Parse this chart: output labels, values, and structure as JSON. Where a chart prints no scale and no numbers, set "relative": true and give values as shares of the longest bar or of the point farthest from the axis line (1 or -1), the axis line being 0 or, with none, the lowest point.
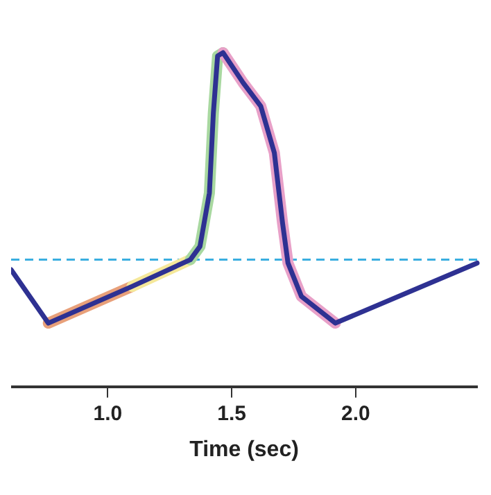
{
  "chart_data": {
    "type": "line",
    "relative": true,
    "xlabel": "Time (sec)",
    "xlim": [
      0.61,
      2.49
    ],
    "xticks": [
      {
        "value": 1,
        "label": "1.0"
      },
      {
        "value": 1.5,
        "label": "1.5"
      },
      {
        "value": 2,
        "label": "2.0"
      }
    ],
    "grid": false,
    "legend": false,
    "marker": "none",
    "line_style": "solid",
    "ref_lines": [
      {
        "axis": "y",
        "value": 0.38,
        "color": "#3aaee0",
        "line_style": "dashed"
      }
    ],
    "series": [
      {
        "color": "#e8a07a",
        "x": [
          0.76,
          1.098
        ],
        "values": [
          0.19,
          0.3
        ]
      },
      {
        "color": "#f5e89a",
        "x": [
          1.098,
          1.333
        ],
        "values": [
          0.3,
          0.38
        ]
      },
      {
        "color": "#a8d8a0",
        "x": [
          1.333,
          1.372,
          1.41,
          1.426,
          1.443,
          1.465
        ],
        "values": [
          0.38,
          0.42,
          0.58,
          0.82,
          0.99,
          1.0
        ]
      },
      {
        "color": "#e8a0c8",
        "x": [
          1.465,
          1.546,
          1.617,
          1.672,
          1.705,
          1.727,
          1.781,
          1.918
        ],
        "values": [
          1.0,
          0.91,
          0.84,
          0.7,
          0.49,
          0.37,
          0.27,
          0.19
        ]
      },
      {
        "color": "#2e3192",
        "x": [
          0.61,
          0.76,
          1.098,
          1.333,
          1.372,
          1.41,
          1.426,
          1.443,
          1.465,
          1.546,
          1.617,
          1.672,
          1.705,
          1.727,
          1.781,
          1.918,
          2.49
        ],
        "values": [
          0.35,
          0.19,
          0.3,
          0.38,
          0.42,
          0.58,
          0.82,
          0.99,
          1.0,
          0.91,
          0.84,
          0.7,
          0.49,
          0.37,
          0.27,
          0.19,
          0.37
        ]
      }
    ]
  }
}
